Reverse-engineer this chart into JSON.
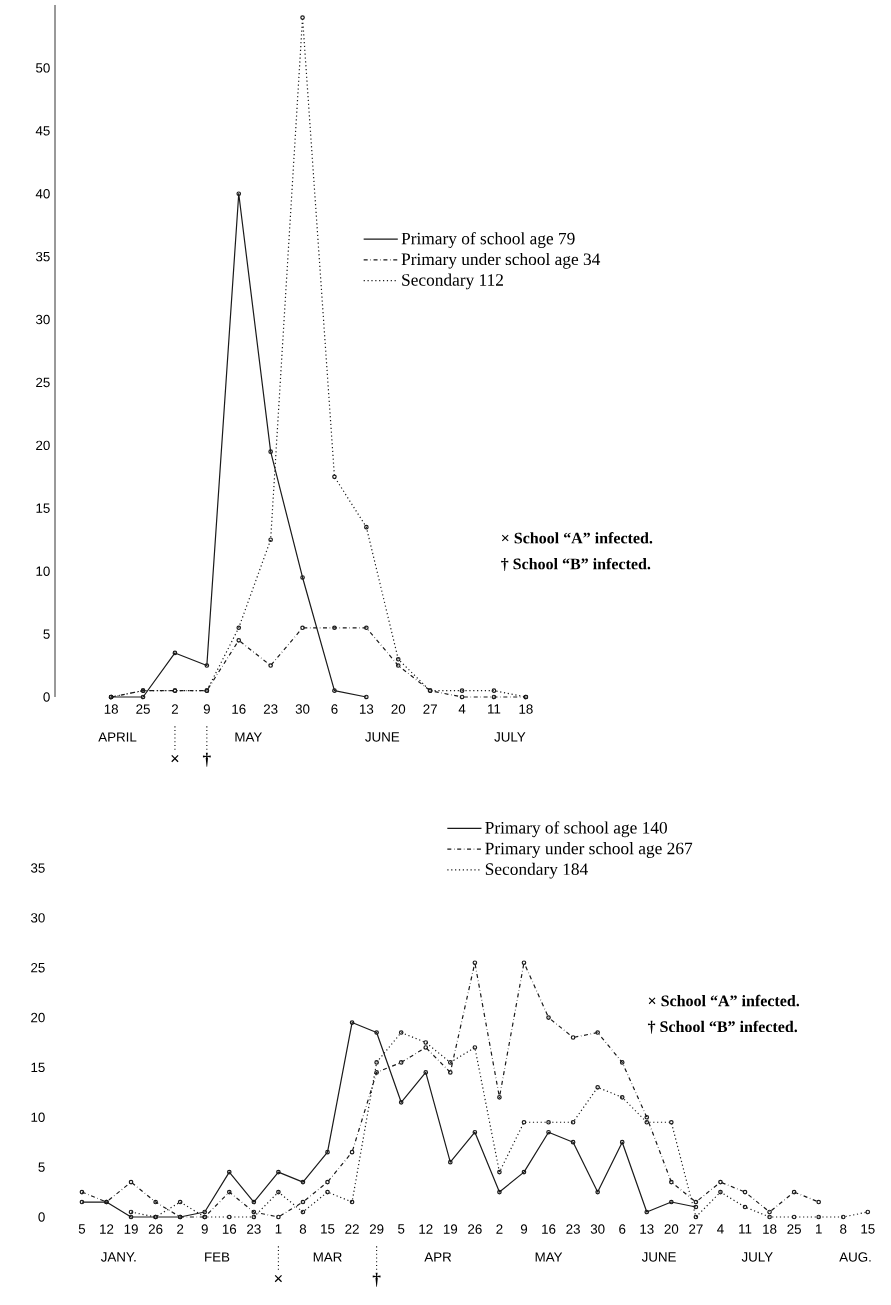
{
  "chart_data": [
    {
      "type": "line",
      "categories": [
        "18",
        "25",
        "2",
        "9",
        "16",
        "23",
        "30",
        "6",
        "13",
        "20",
        "27",
        "4",
        "11",
        "18"
      ],
      "series": [
        {
          "name": "Primary of school age 79",
          "color": "#1a1a1a",
          "line_style": "solid",
          "values": [
            0,
            0,
            3.5,
            2.5,
            40,
            19.5,
            9.5,
            0.5,
            0,
            null,
            null,
            null,
            null,
            null
          ]
        },
        {
          "name": "Primary under school age 34",
          "color": "#1a1a1a",
          "line_style": "dashdot",
          "values": [
            0,
            0.5,
            0.5,
            0.5,
            4.5,
            2.5,
            5.5,
            5.5,
            5.5,
            2.5,
            0.5,
            0,
            0,
            0
          ]
        },
        {
          "name": "Secondary 112",
          "color": "#1a1a1a",
          "line_style": "dotted",
          "values": [
            0,
            0.5,
            0.5,
            0.5,
            5.5,
            12.5,
            54,
            17.5,
            13.5,
            3,
            0.5,
            0.5,
            0.5,
            0
          ]
        }
      ],
      "ylim": [
        0,
        55
      ],
      "yticks": [
        0,
        5,
        10,
        15,
        20,
        25,
        30,
        35,
        40,
        45,
        50
      ],
      "marker": "circle",
      "legend": "right",
      "ref_lines": [
        {
          "axis": "x",
          "value": "2",
          "label": "×",
          "line_style": "dotted"
        },
        {
          "axis": "x",
          "value": "9",
          "label": "†",
          "line_style": "dotted"
        }
      ],
      "annotations": [
        "APRIL",
        "MAY",
        "JUNE",
        "JULY",
        "× School “A” infected.",
        "† School “B” infected."
      ]
    },
    {
      "type": "line",
      "categories": [
        "5",
        "12",
        "19",
        "26",
        "2",
        "9",
        "16",
        "23",
        "1",
        "8",
        "15",
        "22",
        "29",
        "5",
        "12",
        "19",
        "26",
        "2",
        "9",
        "16",
        "23",
        "30",
        "6",
        "13",
        "20",
        "27",
        "4",
        "11",
        "18",
        "25",
        "1",
        "8",
        "15"
      ],
      "series": [
        {
          "name": "Primary of school age 140",
          "color": "#1a1a1a",
          "line_style": "solid",
          "values": [
            1.5,
            1.5,
            0,
            0,
            0,
            0.5,
            4.5,
            1.5,
            4.5,
            3.5,
            6.5,
            19.5,
            18.5,
            11.5,
            14.5,
            5.5,
            8.5,
            2.5,
            4.5,
            8.5,
            7.5,
            2.5,
            7.5,
            0.5,
            1.5,
            1,
            null,
            null,
            null,
            null,
            null,
            null,
            null
          ]
        },
        {
          "name": "Primary under school age 267",
          "color": "#1a1a1a",
          "line_style": "dashdot",
          "values": [
            2.5,
            1.5,
            3.5,
            1.5,
            0,
            0,
            2.5,
            0.5,
            0,
            1.5,
            3.5,
            6.5,
            14.5,
            15.5,
            17,
            14.5,
            25.5,
            12,
            25.5,
            20,
            18,
            18.5,
            15.5,
            10,
            3.5,
            1.5,
            3.5,
            2.5,
            0.5,
            2.5,
            1.5,
            null,
            null
          ]
        },
        {
          "name": "Secondary 184",
          "color": "#1a1a1a",
          "line_style": "dotted",
          "values": [
            null,
            null,
            0.5,
            0,
            1.5,
            0,
            0,
            0,
            2.5,
            0.5,
            2.5,
            1.5,
            15.5,
            18.5,
            17.5,
            15.5,
            17,
            4.5,
            9.5,
            9.5,
            9.5,
            13,
            12,
            9.5,
            9.5,
            0,
            2.5,
            1,
            0,
            0,
            0,
            0,
            0.5
          ]
        }
      ],
      "ylim": [
        0,
        35
      ],
      "yticks": [
        0,
        5,
        10,
        15,
        20,
        25,
        30,
        35
      ],
      "marker": "circle",
      "legend": "top right",
      "ref_lines": [
        {
          "axis": "x",
          "value": "1",
          "label": "×",
          "line_style": "dotted"
        },
        {
          "axis": "x",
          "value": "29",
          "label": "†",
          "line_style": "dotted"
        }
      ],
      "annotations": [
        "JANY.",
        "FEB",
        "MAR",
        "APR",
        "MAY",
        "JUNE",
        "JULY",
        "AUG.",
        "× School “A” infected.",
        "† School “B” infected."
      ]
    }
  ]
}
